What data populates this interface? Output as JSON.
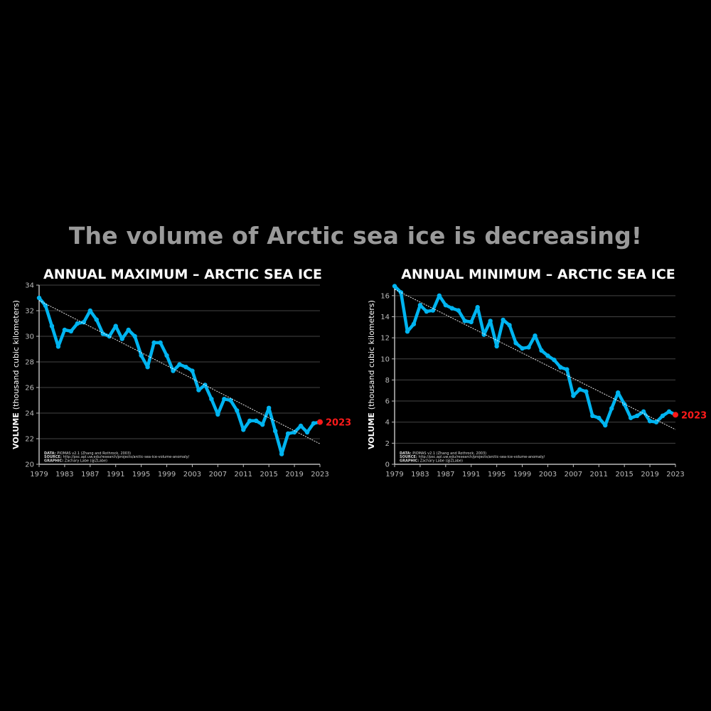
{
  "headline": "The volume of Arctic sea ice is decreasing!",
  "colors": {
    "line": "#00b4f0",
    "highlight": "#ff1a1a",
    "grid": "#444444",
    "axis": "#bbbbbb",
    "trend": "#ffffff",
    "background": "#000000"
  },
  "chart_data": [
    {
      "type": "line",
      "title": "ANNUAL MAXIMUM – ARCTIC SEA ICE",
      "ylabel_bold": "VOLUME",
      "ylabel_rest": "(thousand cubic kilometers)",
      "ylim": [
        20,
        34
      ],
      "yticks": [
        "20",
        "22",
        "24",
        "26",
        "28",
        "30",
        "32",
        "34"
      ],
      "xlim": [
        1979,
        2023
      ],
      "xticks": [
        "1979",
        "1983",
        "1987",
        "1991",
        "1995",
        "1999",
        "2003",
        "2007",
        "2011",
        "2015",
        "2019",
        "2023"
      ],
      "grid": true,
      "trendline": {
        "start": [
          1979,
          32.8
        ],
        "end": [
          2023,
          21.6
        ]
      },
      "highlight_label": "2023",
      "credits": [
        {
          "bold": "DATA:",
          "text": " PIOMAS v2.1 (Zhang and Rothrock, 2003)"
        },
        {
          "bold": "SOURCE:",
          "text": " http://psc.apl.uw.edu/research/projects/arctic-sea-ice-volume-anomaly/"
        },
        {
          "bold": "GRAPHIC:",
          "text": " Zachary Labe (@ZLabe)"
        }
      ],
      "x": [
        1979,
        1980,
        1981,
        1982,
        1983,
        1984,
        1985,
        1986,
        1987,
        1988,
        1989,
        1990,
        1991,
        1992,
        1993,
        1994,
        1995,
        1996,
        1997,
        1998,
        1999,
        2000,
        2001,
        2002,
        2003,
        2004,
        2005,
        2006,
        2007,
        2008,
        2009,
        2010,
        2011,
        2012,
        2013,
        2014,
        2015,
        2016,
        2017,
        2018,
        2019,
        2020,
        2021,
        2022,
        2023
      ],
      "y": [
        33.0,
        32.4,
        30.8,
        29.2,
        30.5,
        30.4,
        31.0,
        31.1,
        32.0,
        31.3,
        30.2,
        30.0,
        30.8,
        29.8,
        30.5,
        30.0,
        28.5,
        27.6,
        29.5,
        29.5,
        28.5,
        27.3,
        27.8,
        27.6,
        27.3,
        25.8,
        26.2,
        25.1,
        23.9,
        25.1,
        25.0,
        24.2,
        22.7,
        23.4,
        23.4,
        23.1,
        24.4,
        22.6,
        20.8,
        22.4,
        22.5,
        23.0,
        22.5,
        23.2,
        23.3
      ]
    },
    {
      "type": "line",
      "title": "ANNUAL MINIMUM – ARCTIC SEA ICE",
      "ylabel_bold": "VOLUME",
      "ylabel_rest": "(thousand cubic kilometers)",
      "ylim": [
        0,
        17
      ],
      "yticks": [
        "0",
        "2",
        "4",
        "6",
        "8",
        "10",
        "12",
        "14",
        "16"
      ],
      "xlim": [
        1979,
        2023
      ],
      "xticks": [
        "1979",
        "1983",
        "1987",
        "1991",
        "1995",
        "1999",
        "2003",
        "2007",
        "2011",
        "2015",
        "2019",
        "2023"
      ],
      "grid": true,
      "trendline": {
        "start": [
          1979,
          16.6
        ],
        "end": [
          2023,
          3.3
        ]
      },
      "highlight_label": "2023",
      "credits": [
        {
          "bold": "DATA:",
          "text": " PIOMAS v2.1 (Zhang and Rothrock, 2003)"
        },
        {
          "bold": "SOURCE:",
          "text": " http://psc.apl.uw.edu/research/projects/arctic-sea-ice-volume-anomaly/"
        },
        {
          "bold": "GRAPHIC:",
          "text": " Zachary Labe (@ZLabe)"
        }
      ],
      "x": [
        1979,
        1980,
        1981,
        1982,
        1983,
        1984,
        1985,
        1986,
        1987,
        1988,
        1989,
        1990,
        1991,
        1992,
        1993,
        1994,
        1995,
        1996,
        1997,
        1998,
        1999,
        2000,
        2001,
        2002,
        2003,
        2004,
        2005,
        2006,
        2007,
        2008,
        2009,
        2010,
        2011,
        2012,
        2013,
        2014,
        2015,
        2016,
        2017,
        2018,
        2019,
        2020,
        2021,
        2022,
        2023
      ],
      "y": [
        16.9,
        16.3,
        12.6,
        13.3,
        15.1,
        14.5,
        14.6,
        16.0,
        15.1,
        14.8,
        14.6,
        13.6,
        13.5,
        14.9,
        12.3,
        13.6,
        11.2,
        13.7,
        13.2,
        11.5,
        11.0,
        11.1,
        12.2,
        10.8,
        10.3,
        9.9,
        9.2,
        9.0,
        6.5,
        7.1,
        6.9,
        4.6,
        4.4,
        3.7,
        5.3,
        6.8,
        5.7,
        4.4,
        4.6,
        5.0,
        4.1,
        4.0,
        4.6,
        5.0,
        4.7
      ]
    }
  ]
}
